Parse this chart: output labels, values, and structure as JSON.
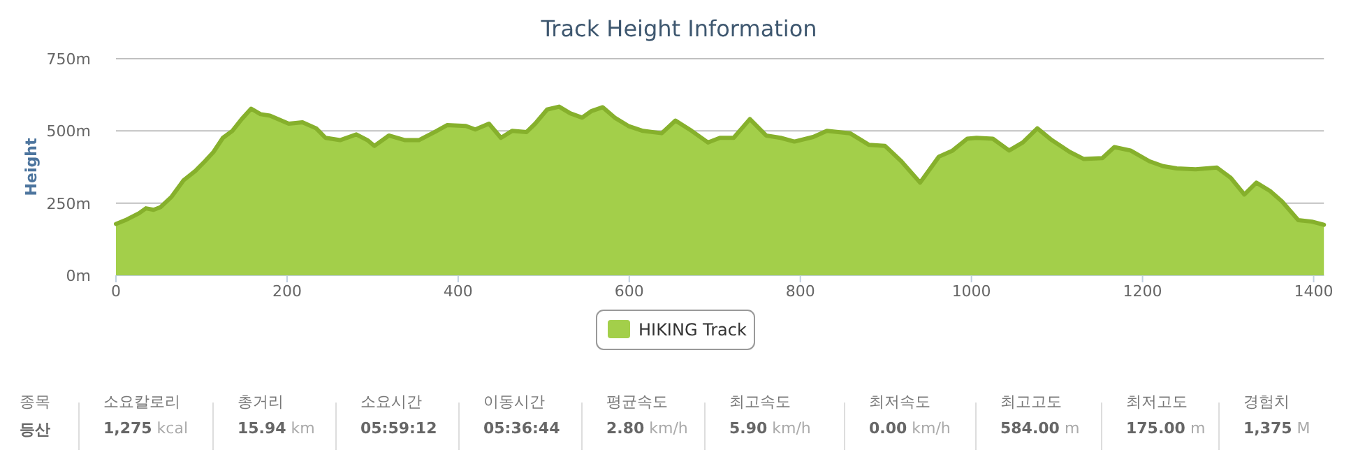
{
  "chart_data": [
    {
      "type": "area",
      "title": "Track Height Information",
      "ylabel": "Height",
      "xlim": [
        0,
        1412
      ],
      "xticks": [
        0,
        200,
        400,
        600,
        800,
        1000,
        1200,
        1400
      ],
      "ylim": [
        0,
        750
      ],
      "yticks": [
        {
          "value": 0,
          "label": "0m"
        },
        {
          "value": 250,
          "label": "250m"
        },
        {
          "value": 500,
          "label": "500m"
        },
        {
          "value": 750,
          "label": "750m"
        }
      ],
      "grid": "y",
      "legend": "bottom",
      "x": [
        0,
        11,
        27,
        35,
        44,
        52,
        65,
        79,
        93,
        104,
        114,
        125,
        136,
        147,
        158,
        169,
        180,
        202,
        218,
        234,
        245,
        262,
        281,
        294,
        302,
        319,
        338,
        354,
        373,
        387,
        409,
        420,
        436,
        450,
        463,
        480,
        490,
        504,
        518,
        531,
        545,
        556,
        569,
        583,
        599,
        616,
        638,
        654,
        673,
        692,
        706,
        722,
        741,
        760,
        777,
        793,
        815,
        831,
        858,
        880,
        899,
        918,
        940,
        962,
        978,
        995,
        1006,
        1025,
        1044,
        1060,
        1077,
        1094,
        1115,
        1131,
        1153,
        1167,
        1186,
        1208,
        1224,
        1240,
        1262,
        1287,
        1303,
        1319,
        1333,
        1349,
        1363,
        1382,
        1398,
        1412
      ],
      "series": [
        {
          "name": "HIKING Track",
          "color": "#a3cf4a",
          "values": [
            178,
            191,
            215,
            232,
            227,
            236,
            272,
            329,
            362,
            395,
            427,
            476,
            500,
            541,
            577,
            558,
            553,
            525,
            530,
            509,
            476,
            468,
            488,
            468,
            448,
            484,
            468,
            468,
            497,
            520,
            517,
            505,
            525,
            476,
            500,
            496,
            525,
            574,
            584,
            561,
            546,
            569,
            582,
            546,
            517,
            500,
            492,
            536,
            500,
            460,
            476,
            476,
            541,
            484,
            476,
            463,
            479,
            500,
            492,
            452,
            448,
            395,
            321,
            411,
            432,
            473,
            476,
            473,
            432,
            460,
            509,
            468,
            427,
            403,
            406,
            444,
            432,
            395,
            378,
            370,
            367,
            373,
            338,
            280,
            321,
            292,
            256,
            191,
            186,
            175
          ]
        }
      ]
    },
    {
      "type": "other",
      "categories": [
        "종목",
        "소요칼로리",
        "총거리",
        "소요시간",
        "이동시간",
        "평균속도",
        "최고속도",
        "최저속도",
        "최고고도",
        "최저고도",
        "경험치"
      ],
      "value_labels": [
        "**등산**",
        "**1,275** kcal",
        "**15.94** km",
        "**05:59:12**",
        "**05:36:44**",
        "**2.80** km/h",
        "**5.90** km/h",
        "**0.00** km/h",
        "**584.00** m",
        "**175.00** m",
        "**1,375** M"
      ]
    }
  ]
}
